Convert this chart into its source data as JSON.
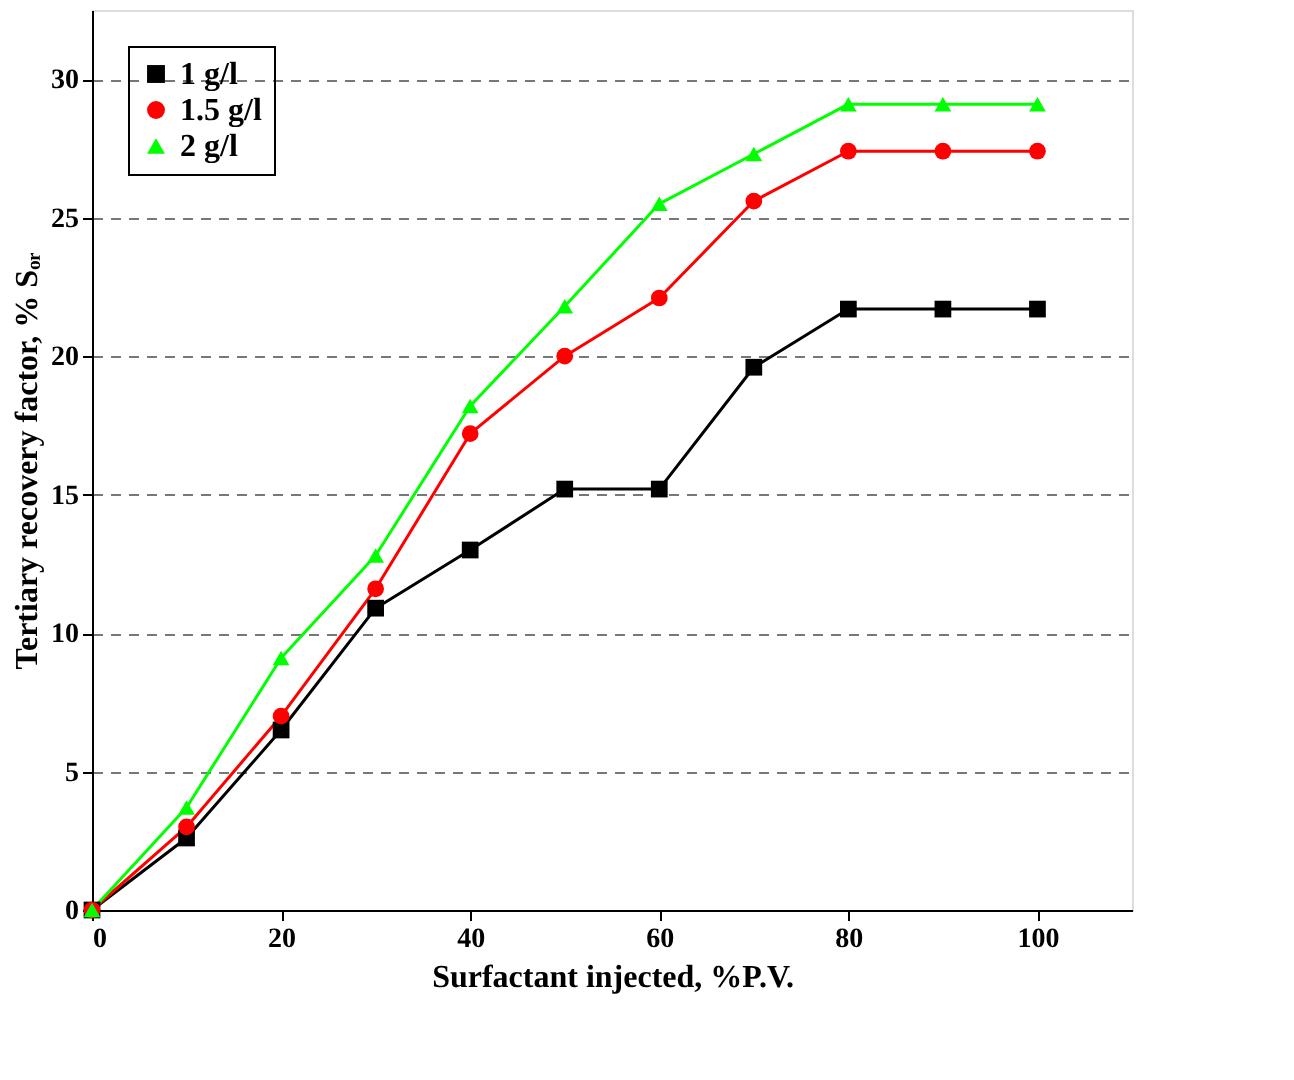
{
  "chart_data": {
    "type": "line",
    "xlabel": "Surfactant injected, %P.V.",
    "ylabel": "Tertiary recovery factor, % Sₒᵣ",
    "x": [
      0,
      10,
      20,
      30,
      40,
      50,
      60,
      70,
      80,
      90,
      100
    ],
    "series": [
      {
        "name": "1 g/l",
        "color": "#000000",
        "marker": "square",
        "values": [
          0,
          2.6,
          6.5,
          10.9,
          13.0,
          15.2,
          15.2,
          19.6,
          21.7,
          21.7,
          21.7
        ]
      },
      {
        "name": "1.5 g/l",
        "color": "#ff0000",
        "marker": "circle",
        "values": [
          0,
          3.0,
          7.0,
          11.6,
          17.2,
          20.0,
          22.1,
          25.6,
          27.4,
          27.4,
          27.4
        ]
      },
      {
        "name": "2 g/l",
        "color": "#00ff00",
        "marker": "triangle",
        "values": [
          0,
          3.7,
          9.1,
          12.8,
          18.2,
          21.8,
          25.5,
          27.3,
          29.1,
          29.1,
          29.1
        ]
      }
    ],
    "xlim": [
      0,
      110
    ],
    "xticks": [
      0,
      20,
      40,
      60,
      80,
      100
    ],
    "ylim": [
      0,
      32.5
    ],
    "yticks": [
      0,
      5,
      10,
      15,
      20,
      25,
      30
    ],
    "grid": "y",
    "legend": "top left",
    "line_style": "solid"
  }
}
